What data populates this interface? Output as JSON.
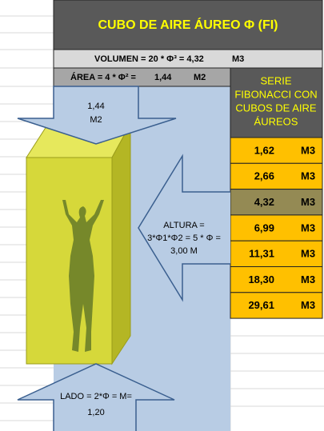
{
  "header": {
    "title": "CUBO DE AIRE ÁUREO Φ (FI)"
  },
  "volume_row": {
    "formula": "VOLUMEN = 20 * Φ³ = 4,32",
    "unit": "M3"
  },
  "area_row": {
    "formula": "ÁREA = 4 * Φ² =",
    "value": "1,44",
    "unit": "M2"
  },
  "series_panel": {
    "title_lines": [
      "SERIE",
      "FIBONACCI CON",
      "CUBOS DE AIRE",
      "ÁUREOS"
    ],
    "rows": [
      [
        "1,62",
        "M3"
      ],
      [
        "2,66",
        "M3"
      ],
      [
        "4,32",
        "M3"
      ],
      [
        "6,99",
        "M3"
      ],
      [
        "11,31",
        "M3"
      ],
      [
        "18,30",
        "M3"
      ],
      [
        "29,61",
        "M3"
      ]
    ]
  },
  "top_arrow": {
    "lines": [
      "1,44",
      "M2"
    ]
  },
  "side_arrow": {
    "lines": [
      "ALTURA =",
      "3*Φ1*Φ2 = 5 * Φ =",
      "3,00  M"
    ]
  },
  "bottom_arrow": {
    "lines": [
      "LADO = 2*Φ = M=",
      "1,20"
    ]
  }
}
